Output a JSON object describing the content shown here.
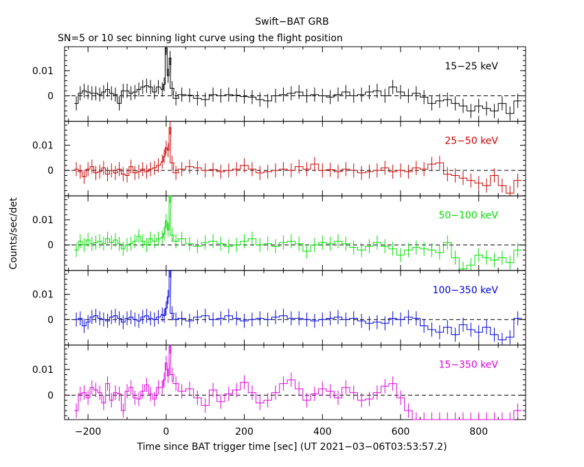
{
  "chart_data": {
    "type": "line",
    "title": "Swift−BAT GRB",
    "subtitle": "SN=5 or 10 sec binning light curve using the flight position",
    "xlabel": "Time since BAT trigger time [sec] (UT 2021−03−06T03:53:57.2)",
    "ylabel": "Counts/sec/det",
    "xlim": [
      -260,
      920
    ],
    "x_ticks": [
      -200,
      0,
      200,
      400,
      600,
      800
    ],
    "x_tick_labels": [
      "−200",
      "0",
      "200",
      "400",
      "600",
      "800"
    ],
    "y_ticks": [
      0,
      0.01
    ],
    "y_tick_labels": [
      "0",
      "0.01"
    ],
    "grid": false,
    "zero_line": "dashed",
    "panels": [
      {
        "name": "15−25 keV",
        "color": "#000000",
        "ylim": [
          -0.0101,
          0.0195
        ],
        "x": [
          -230,
          -220,
          -210,
          -200,
          -190,
          -180,
          -170,
          -160,
          -150,
          -140,
          -130,
          -120,
          -110,
          -100,
          -90,
          -80,
          -70,
          -60,
          -50,
          -40,
          -30,
          -20,
          -10,
          -5,
          0,
          5,
          10,
          15,
          25,
          40,
          60,
          80,
          100,
          120,
          140,
          160,
          180,
          200,
          220,
          240,
          260,
          280,
          300,
          320,
          340,
          360,
          380,
          400,
          420,
          440,
          460,
          480,
          500,
          520,
          540,
          560,
          580,
          600,
          620,
          640,
          660,
          680,
          700,
          720,
          740,
          760,
          780,
          800,
          820,
          840,
          860,
          880,
          900
        ],
        "y": [
          -0.003,
          0.001,
          0.002,
          0.0015,
          0.001,
          0.001,
          0.0005,
          0.0015,
          0.0025,
          0.001,
          0.0005,
          -0.003,
          0.002,
          0.002,
          0.001,
          0.0015,
          0.0025,
          0.0035,
          0.004,
          0.0035,
          0.0015,
          0.0035,
          0.0025,
          0.0045,
          0.019,
          0.008,
          0.015,
          0.003,
          -0.001,
          0.0005,
          0.0002,
          -0.001,
          -0.0015,
          0.0005,
          0.0,
          0.0005,
          0.0002,
          -0.0003,
          -0.0005,
          -0.0015,
          -0.002,
          0.0,
          0.0005,
          0.001,
          0.0015,
          0.0,
          0.0005,
          0.0,
          -0.0005,
          0.0005,
          0.0015,
          0.0,
          0.0005,
          0.0015,
          0.002,
          0.0,
          0.0035,
          0.0015,
          0.0,
          0.001,
          -0.0005,
          -0.003,
          -0.002,
          -0.0015,
          -0.003,
          -0.004,
          -0.006,
          -0.004,
          -0.005,
          -0.006,
          -0.003,
          -0.007,
          -0.002
        ]
      },
      {
        "name": "25−50 keV",
        "color": "#cc0000",
        "ylim": [
          -0.0101,
          0.0195
        ],
        "x": [
          -230,
          -220,
          -210,
          -200,
          -190,
          -180,
          -170,
          -160,
          -150,
          -140,
          -130,
          -120,
          -110,
          -100,
          -90,
          -80,
          -70,
          -60,
          -50,
          -40,
          -30,
          -20,
          -10,
          -5,
          0,
          5,
          10,
          15,
          25,
          40,
          60,
          80,
          100,
          120,
          140,
          160,
          180,
          200,
          220,
          240,
          260,
          280,
          300,
          320,
          340,
          360,
          380,
          400,
          420,
          440,
          460,
          480,
          500,
          520,
          540,
          560,
          580,
          600,
          620,
          640,
          660,
          680,
          700,
          720,
          740,
          760,
          780,
          800,
          820,
          840,
          860,
          880,
          900
        ],
        "y": [
          0.0005,
          -0.0005,
          -0.0025,
          0.0005,
          0.0015,
          -0.001,
          -0.0005,
          0.001,
          -0.0015,
          0.0,
          -0.001,
          0.0005,
          -0.0015,
          -0.002,
          0.0015,
          -0.001,
          -0.0005,
          0.0005,
          -0.0005,
          0.0005,
          0.001,
          0.002,
          0.0035,
          0.0055,
          0.009,
          0.008,
          0.017,
          0.003,
          -0.001,
          0.0005,
          0.0015,
          0.001,
          0.0,
          0.0003,
          -0.0005,
          0.0,
          0.0005,
          0.002,
          0.0005,
          -0.001,
          -0.0005,
          0.0,
          0.0005,
          0.0,
          0.0015,
          0.0005,
          0.0025,
          0.0,
          0.0003,
          -0.0005,
          0.0005,
          0.0,
          -0.001,
          -0.0005,
          0.0,
          0.001,
          -0.0005,
          0.0,
          -0.0005,
          0.001,
          0.0005,
          0.0025,
          0.003,
          -0.0015,
          -0.002,
          -0.003,
          -0.004,
          -0.005,
          -0.006,
          -0.002,
          -0.006,
          -0.009,
          -0.004
        ]
      },
      {
        "name": "50−100 keV",
        "color": "#00dd00",
        "ylim": [
          -0.0101,
          0.0195
        ],
        "x": [
          -230,
          -220,
          -210,
          -200,
          -190,
          -180,
          -170,
          -160,
          -150,
          -140,
          -130,
          -120,
          -110,
          -100,
          -90,
          -80,
          -70,
          -60,
          -50,
          -40,
          -30,
          -20,
          -10,
          -5,
          0,
          5,
          10,
          15,
          25,
          40,
          60,
          80,
          100,
          120,
          140,
          160,
          180,
          200,
          220,
          240,
          260,
          280,
          300,
          320,
          340,
          360,
          380,
          400,
          420,
          440,
          460,
          480,
          500,
          520,
          540,
          560,
          580,
          600,
          620,
          640,
          660,
          680,
          700,
          720,
          740,
          760,
          780,
          800,
          820,
          840,
          860,
          880,
          900
        ],
        "y": [
          -0.002,
          0.0015,
          0.0,
          0.002,
          0.0005,
          0.001,
          0.0015,
          0.0005,
          0.0025,
          0.001,
          0.002,
          0.0005,
          -0.0015,
          0.0,
          0.0005,
          0.0015,
          0.0035,
          0.0015,
          0.0,
          0.0025,
          0.0015,
          0.0025,
          0.003,
          0.0045,
          0.0095,
          0.006,
          0.0195,
          0.004,
          0.0015,
          0.0025,
          0.0005,
          -0.0005,
          0.001,
          0.0015,
          0.0005,
          -0.0005,
          0.0,
          0.0015,
          0.0025,
          0.0,
          0.0005,
          -0.0005,
          0.001,
          0.0015,
          0.0005,
          -0.0025,
          0.0,
          0.001,
          0.0005,
          0.0015,
          0.0005,
          -0.001,
          -0.002,
          -0.0005,
          0.001,
          -0.0005,
          -0.0015,
          -0.004,
          -0.002,
          -0.001,
          -0.0015,
          -0.002,
          -0.003,
          0.001,
          -0.005,
          -0.0095,
          -0.008,
          -0.004,
          -0.005,
          -0.006,
          -0.005,
          -0.007,
          -0.002
        ]
      },
      {
        "name": "100−350 keV",
        "color": "#0000dd",
        "ylim": [
          -0.0101,
          0.0195
        ],
        "x": [
          -230,
          -220,
          -210,
          -200,
          -190,
          -180,
          -170,
          -160,
          -150,
          -140,
          -130,
          -120,
          -110,
          -100,
          -90,
          -80,
          -70,
          -60,
          -50,
          -40,
          -30,
          -20,
          -10,
          -5,
          0,
          5,
          10,
          15,
          25,
          40,
          60,
          80,
          100,
          120,
          140,
          160,
          180,
          200,
          220,
          240,
          260,
          280,
          300,
          320,
          340,
          360,
          380,
          400,
          420,
          440,
          460,
          480,
          500,
          520,
          540,
          560,
          580,
          600,
          620,
          640,
          660,
          680,
          700,
          720,
          740,
          760,
          780,
          800,
          820,
          840,
          860,
          880,
          900
        ],
        "y": [
          0.0,
          0.0005,
          -0.0025,
          -0.001,
          0.001,
          0.0015,
          0.0005,
          0.0,
          -0.0005,
          0.001,
          0.0015,
          0.0005,
          -0.001,
          0.0005,
          0.001,
          0.0,
          -0.0005,
          0.001,
          0.0015,
          0.0005,
          0.0,
          0.001,
          0.002,
          0.0015,
          0.0045,
          0.009,
          0.0195,
          0.0025,
          0.0,
          0.0005,
          -0.0005,
          0.001,
          0.0015,
          0.0,
          0.0005,
          0.0015,
          0.0005,
          -0.0005,
          0.0,
          0.0005,
          0.0,
          0.001,
          0.0015,
          0.0005,
          0.0005,
          0.0,
          -0.0005,
          0.0,
          0.0005,
          0.001,
          0.0,
          0.0005,
          -0.0005,
          -0.0015,
          -0.001,
          -0.0015,
          0.0005,
          0.0,
          0.001,
          0.0005,
          -0.0025,
          -0.004,
          -0.005,
          -0.003,
          -0.006,
          -0.002,
          -0.004,
          -0.005,
          -0.003,
          -0.006,
          -0.008,
          -0.007,
          0.0005
        ]
      },
      {
        "name": "15−350 keV",
        "color": "#dd00dd",
        "ylim": [
          -0.0095,
          0.0195
        ],
        "x": [
          -230,
          -220,
          -210,
          -200,
          -190,
          -180,
          -170,
          -160,
          -150,
          -140,
          -130,
          -120,
          -110,
          -100,
          -90,
          -80,
          -70,
          -60,
          -50,
          -40,
          -30,
          -20,
          -10,
          -5,
          0,
          5,
          10,
          15,
          25,
          40,
          60,
          80,
          100,
          120,
          140,
          160,
          180,
          200,
          220,
          240,
          260,
          280,
          300,
          320,
          340,
          360,
          380,
          400,
          420,
          440,
          460,
          480,
          500,
          520,
          540,
          560,
          580,
          600,
          620,
          640,
          660,
          680,
          700,
          720,
          740,
          760,
          780,
          800,
          820,
          840,
          860,
          880,
          900
        ],
        "y": [
          -0.006,
          0.0005,
          0.001,
          -0.001,
          0.003,
          0.002,
          0.001,
          -0.003,
          0.0045,
          -0.002,
          0.001,
          0.0005,
          -0.006,
          0.0015,
          0.003,
          -0.001,
          -0.0015,
          0.0015,
          0.004,
          0.0005,
          -0.0015,
          0.003,
          0.003,
          0.006,
          0.0125,
          0.0075,
          0.019,
          0.008,
          0.0045,
          0.0015,
          0.0025,
          -0.001,
          -0.004,
          0.002,
          -0.0025,
          0.0005,
          0.002,
          0.005,
          0.001,
          -0.003,
          -0.002,
          0.001,
          0.0045,
          0.006,
          0.0025,
          -0.002,
          0.0005,
          0.0025,
          0.0015,
          -0.001,
          0.003,
          0.001,
          -0.002,
          -0.0015,
          0.001,
          0.0035,
          0.0045,
          -0.001,
          -0.006,
          -0.0095,
          -0.0095,
          -0.0095,
          -0.0095,
          -0.0095,
          -0.0095,
          -0.0095,
          -0.0095,
          -0.0095,
          -0.0095,
          -0.0095,
          -0.0095,
          -0.0095,
          -0.006
        ]
      }
    ]
  }
}
